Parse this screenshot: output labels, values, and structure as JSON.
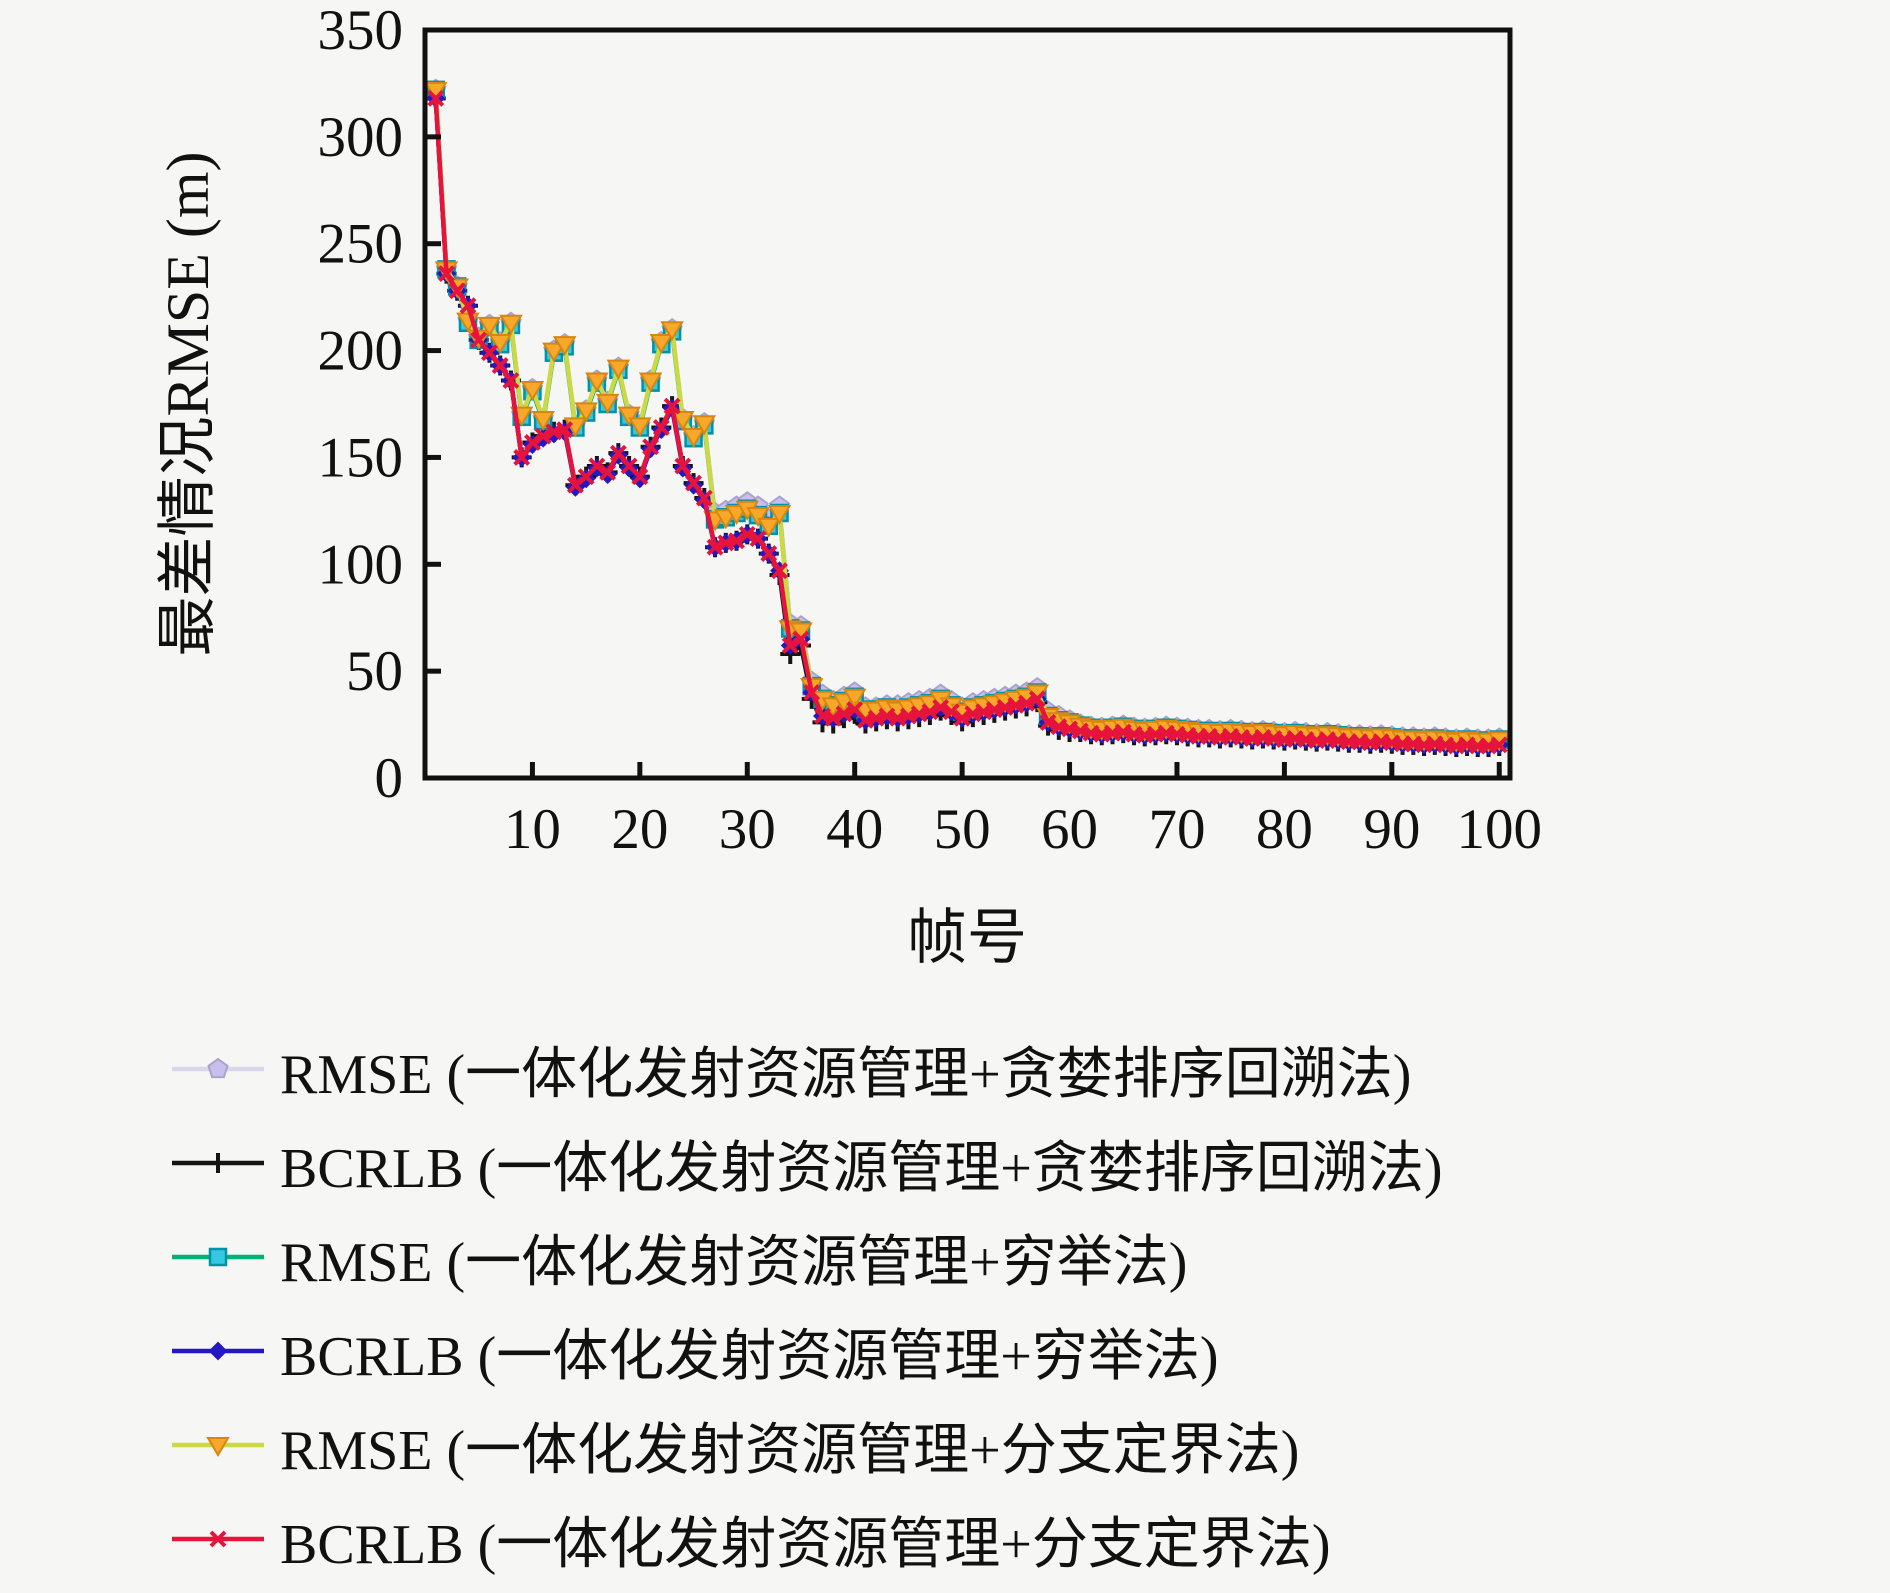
{
  "chart_data": {
    "type": "line",
    "xlabel": "帧号",
    "ylabel": "最差情况RMSE (m)",
    "xlim": [
      1,
      100
    ],
    "ylim": [
      0,
      350
    ],
    "xticks": [
      10,
      20,
      30,
      40,
      50,
      60,
      70,
      80,
      90,
      100
    ],
    "yticks": [
      0,
      50,
      100,
      150,
      200,
      250,
      300,
      350
    ],
    "grid": false,
    "legend_position": "below",
    "x_is_frame_index": "1..100",
    "series": [
      {
        "name": "RMSE (一体化发射资源管理+贪婪排序回溯法)",
        "marker": "pentagon",
        "line_color": "#d9d5ea",
        "marker_fill": "#c9bfec",
        "marker_stroke": "#aaa2cf",
        "values": [
          322,
          238,
          230,
          214,
          206,
          212,
          204,
          213,
          170,
          182,
          168,
          200,
          203,
          165,
          172,
          186,
          176,
          192,
          170,
          165,
          186,
          204,
          210,
          168,
          160,
          166,
          124,
          125,
          127,
          129,
          127,
          121,
          127,
          72,
          71,
          45,
          39,
          36,
          38,
          40,
          33,
          33,
          34,
          34,
          35,
          36,
          37,
          39,
          36,
          33,
          35,
          36,
          37,
          38,
          39,
          40,
          42,
          31,
          29,
          27,
          25,
          24,
          23.5,
          24,
          24.5,
          23.5,
          23,
          23.5,
          24,
          23.5,
          23,
          22.5,
          22.5,
          22,
          22.5,
          22,
          21.5,
          22,
          21.5,
          21,
          21.5,
          21,
          20.5,
          21,
          20.5,
          20,
          20,
          19.5,
          20,
          19.5,
          19,
          19,
          18.5,
          19,
          18.5,
          18,
          18.5,
          18,
          18,
          18.5
        ]
      },
      {
        "name": "BCRLB (一体化发射资源管理+贪婪排序回溯法)",
        "marker": "plus",
        "line_color": "#151515",
        "marker_fill": "#151515",
        "marker_stroke": "#151515",
        "values": [
          318,
          236,
          228,
          221,
          205,
          199,
          193,
          186,
          150,
          157,
          160,
          162,
          163,
          137,
          141,
          146,
          143,
          152,
          146,
          141,
          155,
          164,
          174,
          146,
          138,
          131,
          108,
          110,
          111,
          114,
          112,
          105,
          95,
          58,
          62,
          37,
          26,
          25.5,
          28,
          30,
          25.5,
          26.5,
          27.5,
          26.5,
          27.5,
          28.5,
          29.5,
          31.5,
          29.5,
          26.5,
          28.5,
          29.5,
          30.5,
          31.5,
          32.5,
          33.5,
          35.5,
          24.5,
          22.5,
          21.5,
          21.5,
          20.5,
          20,
          20.5,
          21,
          20,
          19.5,
          20,
          20.5,
          20,
          19.5,
          19,
          19,
          18.5,
          19,
          18.5,
          18,
          18.5,
          18,
          17.5,
          18,
          17.5,
          17,
          17.5,
          17,
          16.5,
          16.5,
          16,
          16.5,
          16,
          15.5,
          15.5,
          15,
          15.5,
          15,
          14.5,
          15,
          14.5,
          14.5,
          15
        ]
      },
      {
        "name": "RMSE (一体化发射资源管理+穷举法)",
        "marker": "square",
        "line_color": "#00b278",
        "marker_fill": "#35c8e0",
        "marker_stroke": "#0092a8",
        "values": [
          322,
          238,
          230,
          213,
          205,
          211,
          203,
          212,
          169,
          181,
          167,
          199,
          202,
          164,
          171,
          185,
          175,
          191,
          169,
          164,
          185,
          203,
          209,
          167,
          159,
          165,
          121,
          122,
          124,
          126,
          123,
          118,
          124,
          70,
          69,
          43,
          37,
          34,
          36,
          38,
          32,
          32,
          33,
          32,
          33,
          34,
          35,
          37,
          34,
          31,
          33,
          34,
          35,
          36,
          37,
          38,
          40,
          29,
          27,
          26,
          24.5,
          23.5,
          23,
          23.5,
          24,
          23,
          22.5,
          23,
          23.5,
          23,
          22.5,
          22,
          22,
          21.5,
          22,
          21.5,
          21,
          21.5,
          21,
          20.5,
          21,
          20.5,
          20,
          20.5,
          20,
          19.5,
          19.5,
          19,
          19.5,
          19,
          18.5,
          18.5,
          18,
          18.5,
          18,
          17.5,
          18,
          17.5,
          17.5,
          18
        ]
      },
      {
        "name": "BCRLB (一体化发射资源管理+穷举法)",
        "marker": "diamond",
        "line_color": "#2318c4",
        "marker_fill": "#2318c4",
        "marker_stroke": "#2318c4",
        "values": [
          318,
          236,
          228,
          221,
          205,
          199,
          193,
          186,
          150,
          156,
          159,
          161,
          162,
          136,
          140,
          145,
          142,
          151,
          145,
          140,
          154,
          163,
          173,
          145,
          137,
          130,
          108,
          110,
          111,
          114,
          112,
          105,
          97,
          62,
          65,
          40,
          29,
          28,
          30,
          32,
          27,
          28,
          29,
          28,
          29,
          30,
          31,
          33,
          31,
          28,
          30,
          31,
          32,
          33,
          34,
          35,
          37,
          26,
          24,
          23,
          22,
          21,
          20.5,
          21,
          21.5,
          20.5,
          20,
          20.5,
          21,
          20.5,
          20,
          19.5,
          19.5,
          19,
          19.5,
          19,
          18.5,
          19,
          18.5,
          18,
          18.5,
          18,
          17.5,
          18,
          17.5,
          17,
          17,
          16.5,
          17,
          16.5,
          16,
          16,
          15.5,
          16,
          15.5,
          15,
          15.5,
          15,
          15,
          15.5
        ]
      },
      {
        "name": "RMSE (一体化发射资源管理+分支定界法)",
        "marker": "triangle-down",
        "line_color": "#ccd844",
        "marker_fill": "#f7a82b",
        "marker_stroke": "#d8860f",
        "values": [
          322,
          238,
          230,
          214,
          206,
          212,
          204,
          213,
          170,
          182,
          168,
          200,
          203,
          165,
          172,
          186,
          176,
          192,
          170,
          165,
          186,
          204,
          210,
          168,
          160,
          166,
          121,
          122,
          124,
          126,
          123,
          118,
          124,
          70,
          69,
          43,
          37,
          34,
          36,
          38,
          32,
          32,
          33,
          32,
          33,
          34,
          35,
          37,
          34,
          31,
          33,
          34,
          35,
          36,
          37,
          38,
          40,
          29,
          27,
          26,
          24.5,
          23.5,
          23,
          23.5,
          24,
          23,
          22.5,
          23,
          23.5,
          23,
          22.5,
          22,
          22,
          21.5,
          22,
          21.5,
          21,
          21.5,
          21,
          20.5,
          21,
          20.5,
          20,
          20.5,
          20,
          19.5,
          19.5,
          19,
          19.5,
          19,
          18.5,
          18.5,
          18,
          18.5,
          18,
          17.5,
          18,
          17.5,
          17.5,
          18
        ]
      },
      {
        "name": "BCRLB (一体化发射资源管理+分支定界法)",
        "marker": "x",
        "line_color": "#e6143c",
        "marker_fill": "#e6143c",
        "marker_stroke": "#e6143c",
        "values": [
          318,
          236,
          228,
          221,
          205,
          199,
          193,
          186,
          150,
          157,
          160,
          162,
          163,
          137,
          141,
          146,
          143,
          152,
          146,
          141,
          155,
          164,
          174,
          146,
          138,
          131,
          108,
          110,
          111,
          114,
          112,
          105,
          97,
          62,
          65,
          40,
          29,
          28,
          30,
          32,
          27,
          28,
          29,
          28,
          29,
          30,
          31,
          33,
          31,
          28,
          30,
          31,
          32,
          33,
          34,
          35,
          37,
          26,
          24,
          23,
          22,
          21,
          20.5,
          21,
          21.5,
          20.5,
          20,
          20.5,
          21,
          20.5,
          20,
          19.5,
          19.5,
          19,
          19.5,
          19,
          18.5,
          19,
          18.5,
          18,
          18.5,
          18,
          17.5,
          18,
          17.5,
          17,
          17,
          16.5,
          17,
          16.5,
          16,
          16,
          15.5,
          16,
          15.5,
          15,
          15.5,
          15,
          15,
          15.5
        ]
      }
    ]
  },
  "legend": {
    "items": [
      "RMSE (一体化发射资源管理+贪婪排序回溯法)",
      "BCRLB (一体化发射资源管理+贪婪排序回溯法)",
      "RMSE (一体化发射资源管理+穷举法)",
      "BCRLB (一体化发射资源管理+穷举法)",
      "RMSE (一体化发射资源管理+分支定界法)",
      "BCRLB (一体化发射资源管理+分支定界法)"
    ]
  },
  "colors": {
    "background": "#f6f6f4",
    "axis": "#111111"
  }
}
